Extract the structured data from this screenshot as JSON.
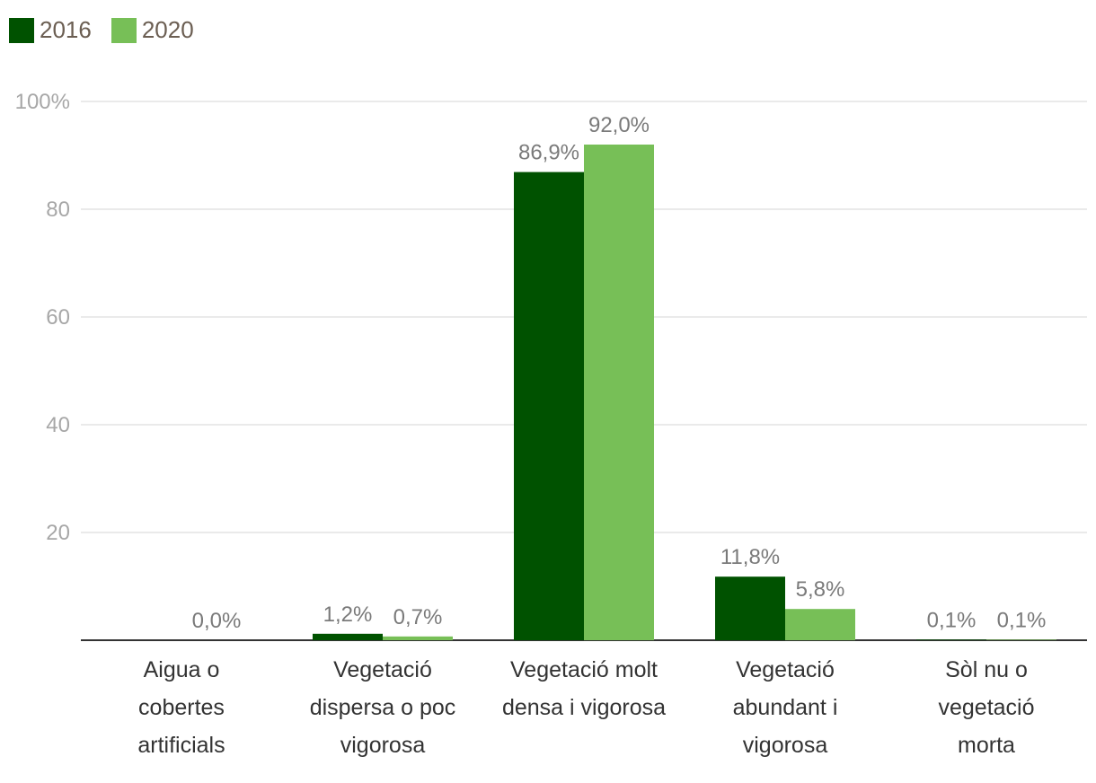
{
  "legend": [
    {
      "label": "2016",
      "color": "#005200"
    },
    {
      "label": "2020",
      "color": "#77bf57"
    }
  ],
  "chart_data": {
    "type": "bar",
    "categories": [
      [
        "Aigua o",
        "cobertes",
        "artificials"
      ],
      [
        "Vegetació",
        "dispersa o poc",
        "vigorosa"
      ],
      [
        "Vegetació molt",
        "densa i vigorosa"
      ],
      [
        "Vegetació",
        "abundant i",
        "vigorosa"
      ],
      [
        "Sòl nu o",
        "vegetació",
        "morta"
      ]
    ],
    "series": [
      {
        "name": "2016",
        "color": "#005200",
        "values": [
          null,
          1.2,
          86.9,
          11.8,
          0.1
        ],
        "labels": [
          "",
          "1,2%",
          "86,9%",
          "11,8%",
          "0,1%"
        ]
      },
      {
        "name": "2020",
        "color": "#77bf57",
        "values": [
          0.0,
          0.7,
          92.0,
          5.8,
          0.1
        ],
        "labels": [
          "0,0%",
          "0,7%",
          "92,0%",
          "5,8%",
          "0,1%"
        ]
      }
    ],
    "ylim": [
      0,
      100
    ],
    "yticks": [
      {
        "value": 20,
        "label": "20"
      },
      {
        "value": 40,
        "label": "40"
      },
      {
        "value": 60,
        "label": "60"
      },
      {
        "value": 80,
        "label": "80"
      },
      {
        "value": 100,
        "label": "100%"
      }
    ],
    "grid": true,
    "legend_position": "top-left",
    "title": "",
    "xlabel": "",
    "ylabel": ""
  }
}
